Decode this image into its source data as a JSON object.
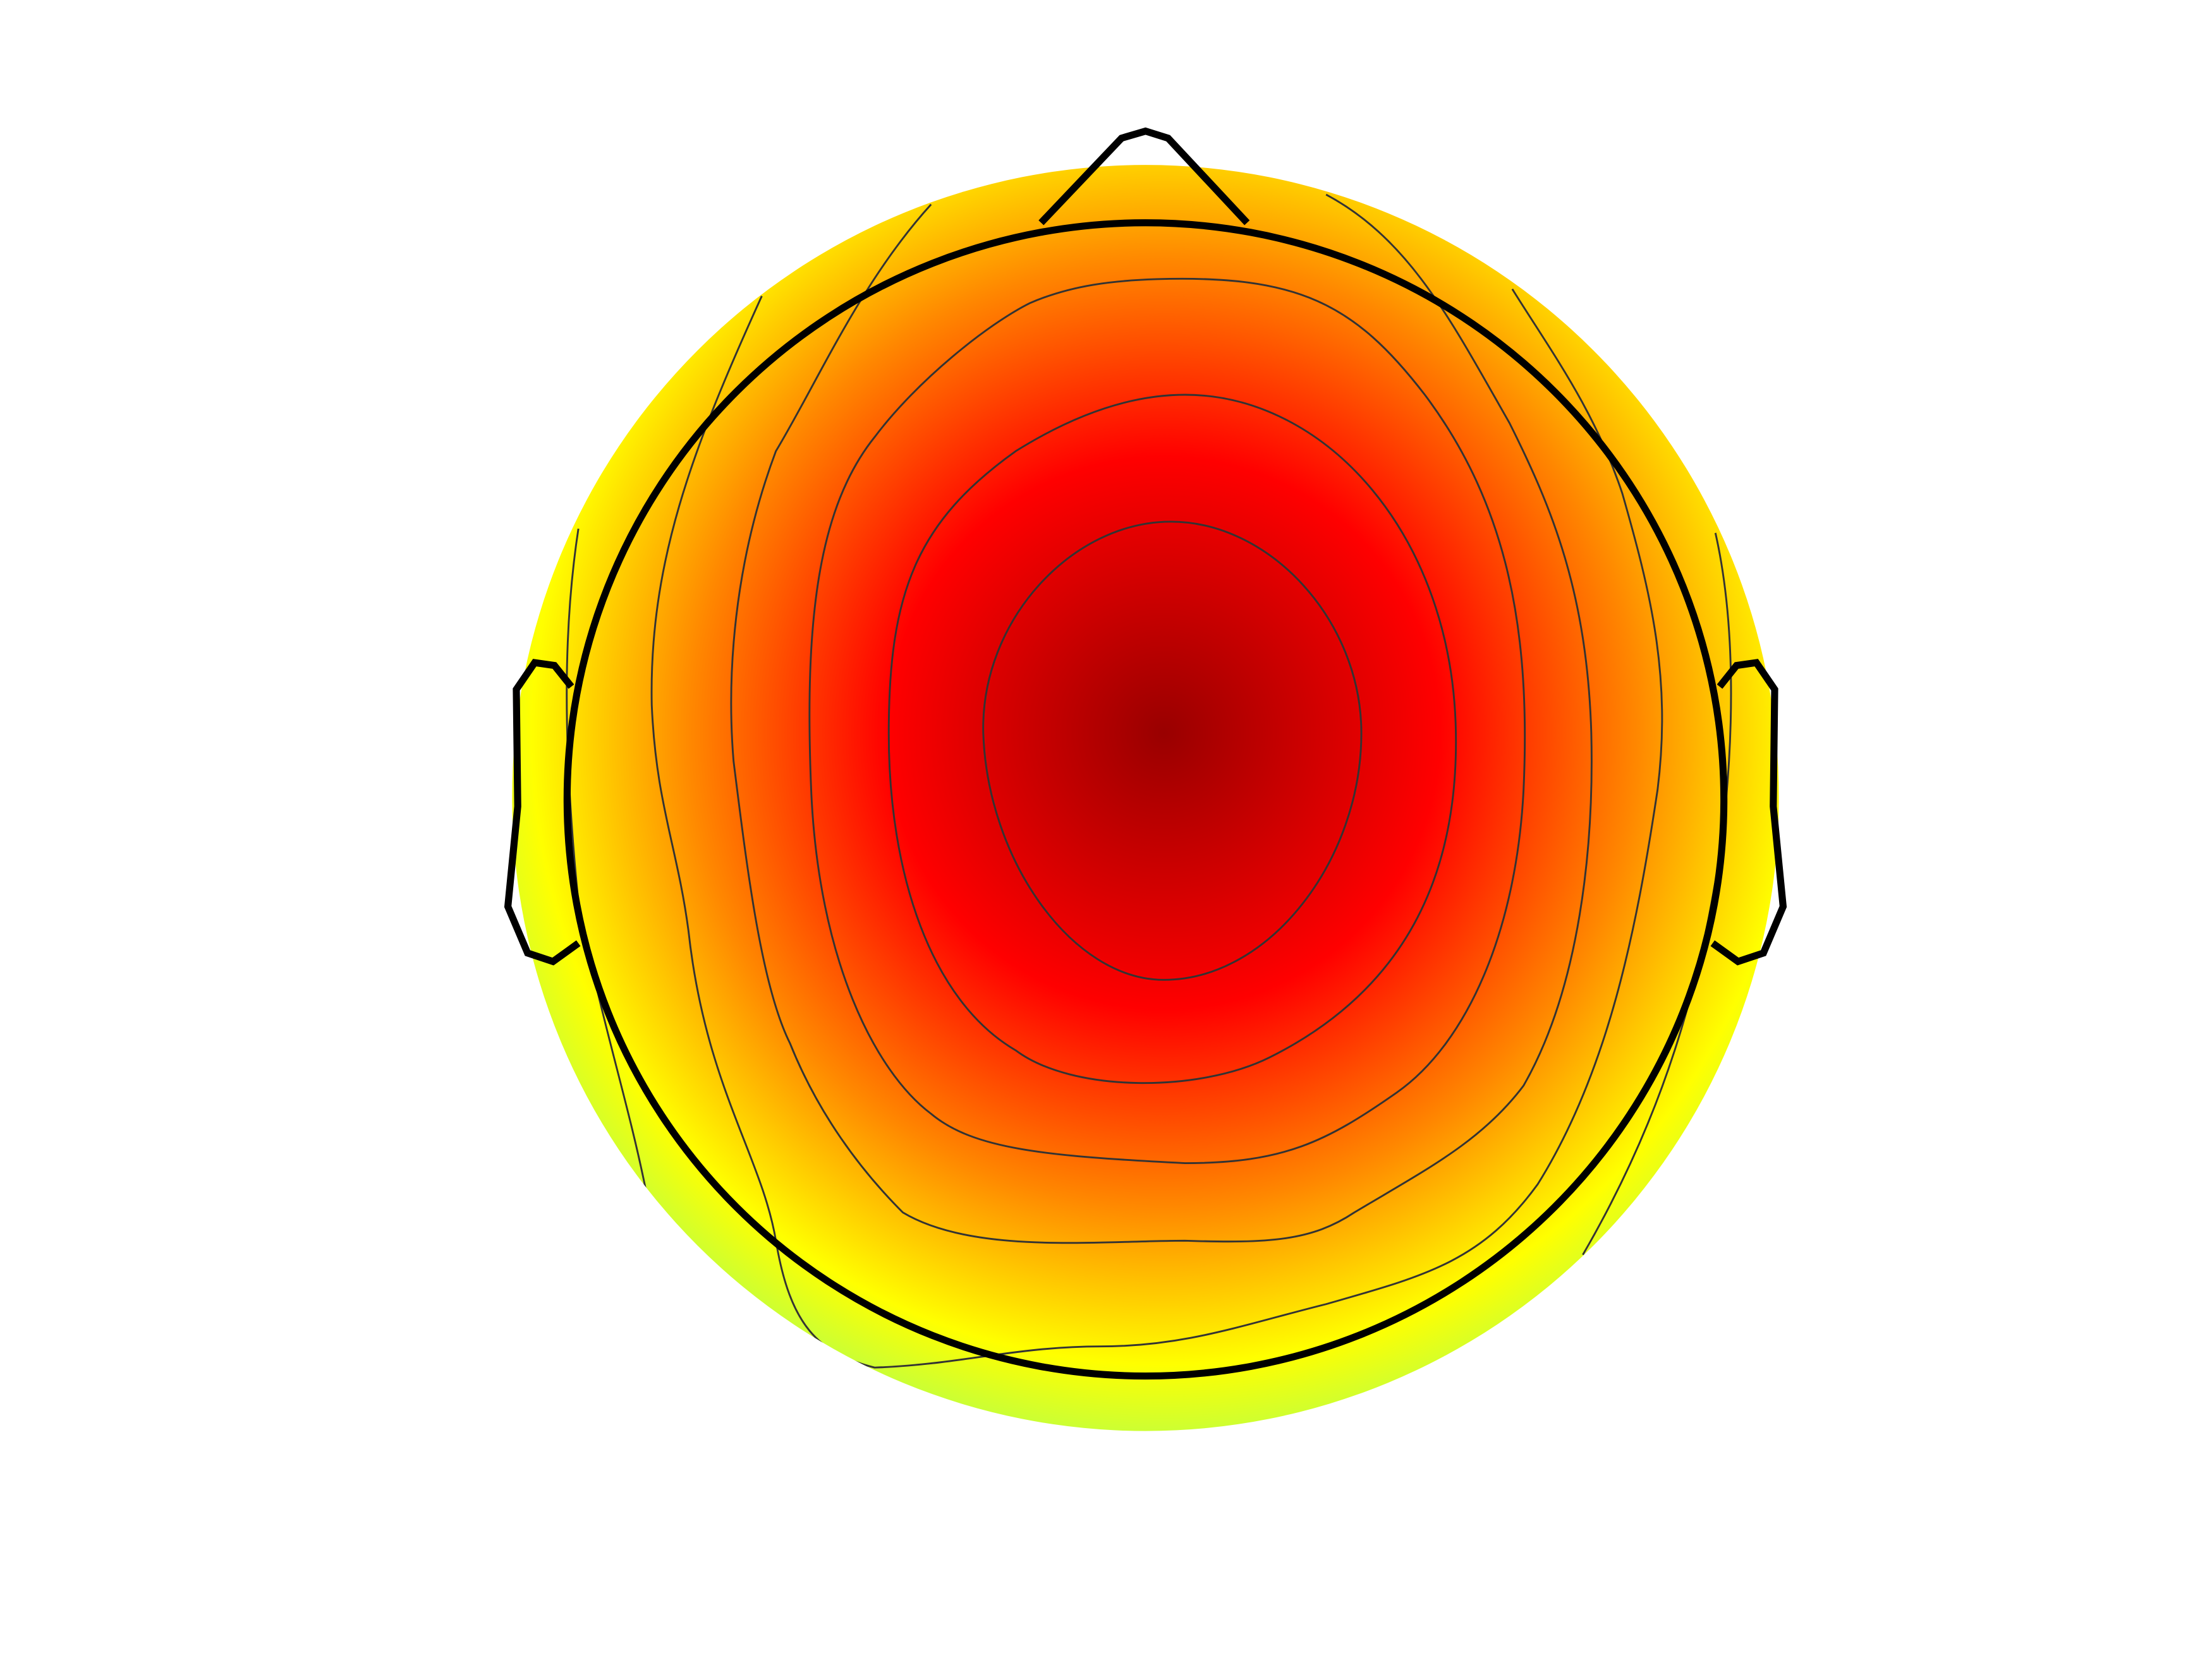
{
  "chart_data": {
    "type": "topomap",
    "colors": [
      "#990000",
      "#ff0000",
      "#ff8800",
      "#ffff00",
      "#88ff77"
    ]
  }
}
